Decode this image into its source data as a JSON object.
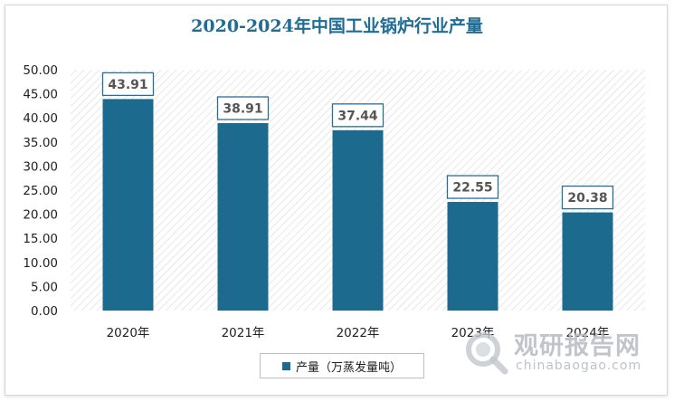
{
  "colors": {
    "bar": "#1d6a8f",
    "title": "#1f6d94",
    "axis_text": "#222222",
    "label_border": "#2a6f93",
    "label_text": "#555555"
  },
  "chart_data": {
    "type": "bar",
    "title": "2020-2024年中国工业锅炉行业产量",
    "categories": [
      "2020年",
      "2021年",
      "2022年",
      "2023年",
      "2024年"
    ],
    "series": [
      {
        "name": "产量（万蒸发量吨）",
        "values": [
          43.91,
          38.91,
          37.44,
          22.55,
          20.38
        ]
      }
    ],
    "ylim": [
      0,
      50
    ],
    "yticks": [
      "0.00",
      "5.00",
      "10.00",
      "15.00",
      "20.00",
      "25.00",
      "30.00",
      "35.00",
      "40.00",
      "45.00",
      "50.00"
    ],
    "data_labels": [
      "43.91",
      "38.91",
      "37.44",
      "22.55",
      "20.38"
    ],
    "xlabel": "",
    "ylabel": "",
    "grid": false,
    "legend_position": "bottom"
  },
  "watermark": {
    "name": "观研报告网",
    "url": "chinabaogao.com",
    "icon": "magnifier-logo-icon"
  }
}
